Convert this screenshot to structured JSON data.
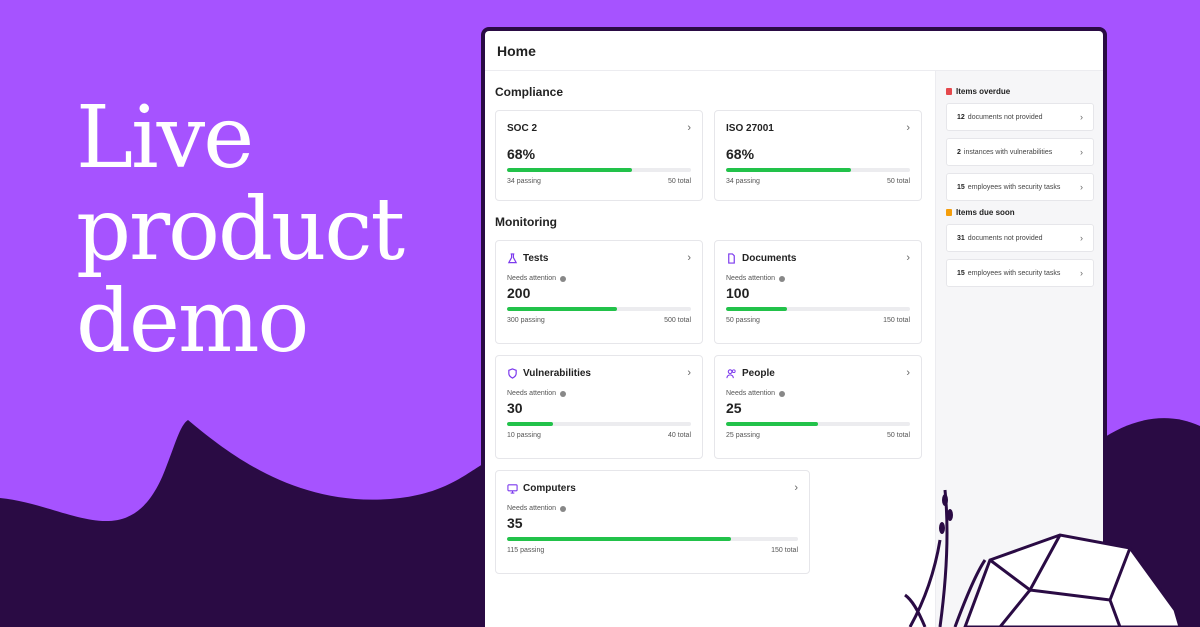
{
  "headline": [
    "Live",
    "product",
    "demo"
  ],
  "window": {
    "title": "Home"
  },
  "compliance": {
    "title": "Compliance",
    "cards": [
      {
        "name": "SOC 2",
        "percent": "68%",
        "passing": "34 passing",
        "total": "50 total",
        "progress": 0.68
      },
      {
        "name": "ISO 27001",
        "percent": "68%",
        "passing": "34 passing",
        "total": "50 total",
        "progress": 0.68
      }
    ]
  },
  "monitoring": {
    "title": "Monitoring",
    "needs_label": "Needs attention",
    "cards": [
      {
        "name": "Tests",
        "icon": "flask-icon",
        "count": "200",
        "passing": "300 passing",
        "total": "500 total",
        "progress": 0.6
      },
      {
        "name": "Documents",
        "icon": "document-icon",
        "count": "100",
        "passing": "50 passing",
        "total": "150 total",
        "progress": 0.33
      },
      {
        "name": "Vulnerabilities",
        "icon": "shield-icon",
        "count": "30",
        "passing": "10 passing",
        "total": "40 total",
        "progress": 0.25
      },
      {
        "name": "People",
        "icon": "people-icon",
        "count": "25",
        "passing": "25 passing",
        "total": "50 total",
        "progress": 0.5
      },
      {
        "name": "Computers",
        "icon": "monitor-icon",
        "count": "35",
        "passing": "115 passing",
        "total": "150 total",
        "progress": 0.77
      }
    ]
  },
  "sidebar": {
    "overdue": {
      "title": "Items overdue",
      "items": [
        {
          "count": "12",
          "text": "documents not provided"
        },
        {
          "count": "2",
          "text": "instances with vulnerabilities"
        },
        {
          "count": "15",
          "text": "employees with security tasks"
        }
      ]
    },
    "due_soon": {
      "title": "Items due soon",
      "items": [
        {
          "count": "31",
          "text": "documents not provided"
        },
        {
          "count": "15",
          "text": "employees with security tasks"
        }
      ]
    }
  },
  "colors": {
    "background": "#a653ff",
    "dark": "#2a0b44",
    "progress": "#22c24a",
    "overdue": "#e5484d",
    "due_soon": "#f59e0b",
    "icon": "#7c3aed"
  }
}
